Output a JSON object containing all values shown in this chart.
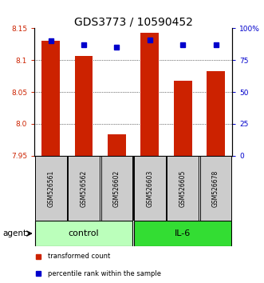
{
  "title": "GDS3773 / 10590452",
  "samples": [
    "GSM526561",
    "GSM526562",
    "GSM526602",
    "GSM526603",
    "GSM526605",
    "GSM526678"
  ],
  "red_values": [
    8.13,
    8.107,
    7.983,
    8.143,
    8.068,
    8.083
  ],
  "blue_values": [
    90,
    87,
    85,
    91,
    87,
    87
  ],
  "ylim_left": [
    7.95,
    8.15
  ],
  "ylim_right": [
    0,
    100
  ],
  "yticks_left": [
    7.95,
    8.0,
    8.05,
    8.1,
    8.15
  ],
  "yticks_right": [
    0,
    25,
    50,
    75,
    100
  ],
  "yticklabels_right": [
    "0",
    "25",
    "50",
    "75",
    "100%"
  ],
  "grid_lines": [
    8.0,
    8.05,
    8.1
  ],
  "red_color": "#cc2200",
  "blue_color": "#0000cc",
  "control_color": "#bbffbb",
  "il6_color": "#33dd33",
  "sample_box_color": "#cccccc",
  "bar_bottom": 7.95,
  "blue_square_size": 4,
  "group_label_fontsize": 8,
  "sample_label_fontsize": 5.5,
  "tick_label_fontsize": 6.5,
  "title_fontsize": 10,
  "agent_label": "agent",
  "legend_red": "transformed count",
  "legend_blue": "percentile rank within the sample",
  "bar_width": 0.55,
  "group_info": [
    {
      "label": "control",
      "start": 0,
      "end": 2
    },
    {
      "label": "IL-6",
      "start": 3,
      "end": 5
    }
  ]
}
